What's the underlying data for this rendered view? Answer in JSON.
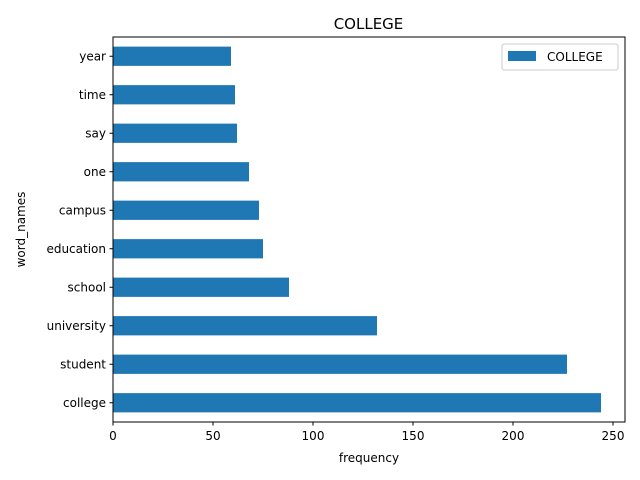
{
  "chart_data": {
    "type": "bar",
    "orientation": "horizontal",
    "title": "COLLEGE",
    "xlabel": "frequency",
    "ylabel": "word_names",
    "categories": [
      "college",
      "student",
      "university",
      "school",
      "education",
      "campus",
      "one",
      "say",
      "time",
      "year"
    ],
    "series": [
      {
        "name": "COLLEGE",
        "values": [
          244,
          227,
          132,
          88,
          75,
          73,
          68,
          62,
          61,
          59
        ]
      }
    ],
    "xlim": [
      0,
      256
    ],
    "xticks": [
      0,
      50,
      100,
      150,
      200,
      250
    ],
    "grid": false,
    "legend": "top-right",
    "bar_color": "#1f77b4"
  }
}
